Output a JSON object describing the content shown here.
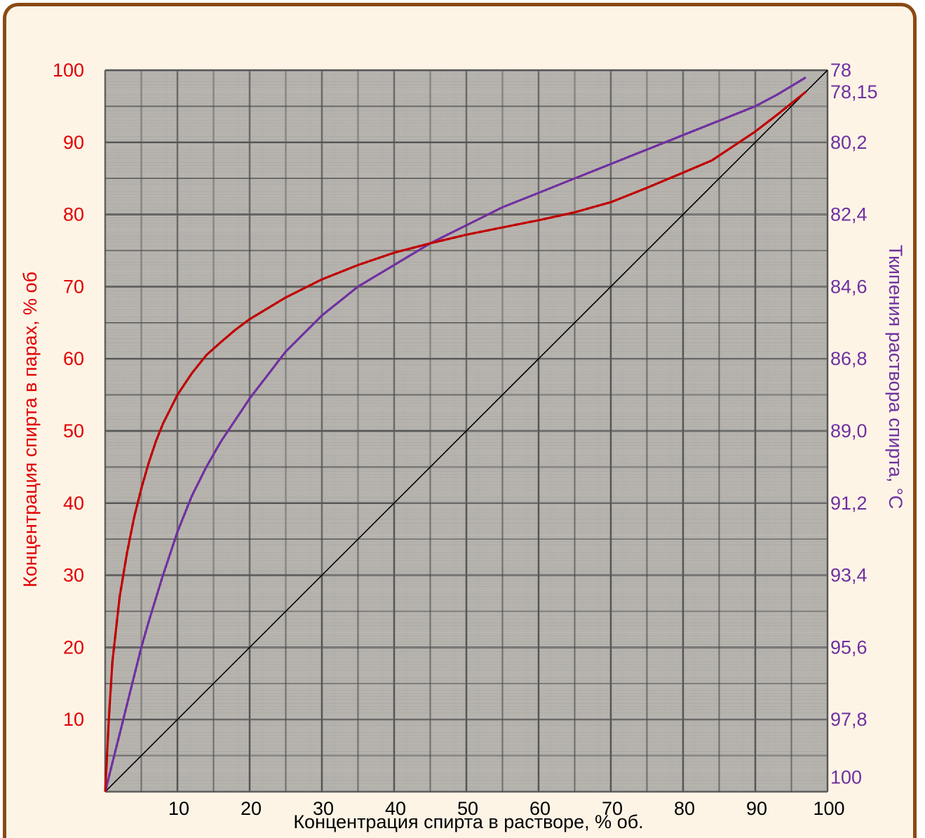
{
  "chart_data": {
    "type": "line",
    "xlabel": "Концентрация спирта в растворе, % об.",
    "ylabel_left": "Концентрация спирта в парах, % об",
    "ylabel_right": "Ткипения раствора спирта, °С",
    "xlim": [
      0,
      100
    ],
    "ylim": [
      0,
      100
    ],
    "x_ticks": [
      "10",
      "20",
      "30",
      "40",
      "50",
      "60",
      "70",
      "80",
      "90",
      "100"
    ],
    "y_ticks_left": [
      "10",
      "20",
      "30",
      "40",
      "50",
      "60",
      "70",
      "80",
      "90",
      "100"
    ],
    "y_ticks_right": [
      {
        "y": 100,
        "label": "78"
      },
      {
        "y": 97,
        "label": "78,15"
      },
      {
        "y": 90,
        "label": "80,2"
      },
      {
        "y": 80,
        "label": "82,4"
      },
      {
        "y": 70,
        "label": "84,6"
      },
      {
        "y": 60,
        "label": "86,8"
      },
      {
        "y": 50,
        "label": "89,0"
      },
      {
        "y": 40,
        "label": "91,2"
      },
      {
        "y": 30,
        "label": "93,4"
      },
      {
        "y": 20,
        "label": "95,6"
      },
      {
        "y": 10,
        "label": "97,8"
      },
      {
        "y": 2,
        "label": "100"
      }
    ],
    "grid": true,
    "colors": {
      "vapor": "#c00000",
      "boiling": "#7030a0",
      "diagonal": "#000000",
      "left_axis_text": "#e00000",
      "right_axis_text": "#7030a0",
      "grid_major": "#555555",
      "grid_minor": "#8a8a8a",
      "frame": "#8a4a12",
      "background": "#fdf4e6"
    },
    "series": [
      {
        "key": "vapor",
        "x": [
          0,
          0.5,
          1,
          2,
          3,
          4,
          5,
          6,
          7,
          8,
          9,
          10,
          12,
          14,
          16,
          18,
          20,
          25,
          30,
          35,
          40,
          45,
          50,
          55,
          60,
          65,
          70,
          75,
          80,
          84,
          87,
          90,
          93,
          97
        ],
        "y": [
          0,
          10,
          18,
          27,
          33,
          38,
          42,
          45.5,
          48.5,
          51,
          53,
          55,
          58,
          60.5,
          62.3,
          64,
          65.5,
          68.5,
          71,
          73,
          74.7,
          76,
          77.2,
          78.2,
          79.2,
          80.3,
          81.7,
          83.7,
          85.8,
          87.5,
          89.5,
          91.5,
          93.8,
          97
        ]
      },
      {
        "key": "boiling",
        "x": [
          0,
          1,
          2,
          3,
          4,
          5,
          6,
          8,
          10,
          12,
          14,
          16,
          18,
          20,
          25,
          30,
          35,
          40,
          45,
          50,
          55,
          60,
          65,
          70,
          75,
          80,
          85,
          90,
          93,
          97
        ],
        "y": [
          0,
          4,
          8,
          12,
          16,
          20,
          23.5,
          30,
          36,
          41,
          45,
          48.5,
          51.5,
          54.5,
          61,
          66,
          70,
          73,
          76,
          78.5,
          81,
          83,
          85,
          87,
          89,
          91,
          93,
          95,
          96.6,
          99
        ]
      },
      {
        "key": "diagonal",
        "x": [
          0,
          100
        ],
        "y": [
          0,
          100
        ]
      }
    ]
  }
}
